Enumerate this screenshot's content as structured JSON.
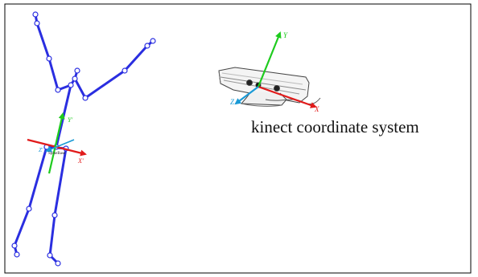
{
  "caption": "kinect coordinate system",
  "skeleton": {
    "axis_labels": {
      "x": "X'",
      "y": "Y'",
      "z": "Z'"
    },
    "origin_label": "SpineBase"
  },
  "sensor": {
    "axis_labels": {
      "x": "X",
      "y": "Y",
      "z": "Z"
    }
  },
  "colors": {
    "bone": "#2a2ee0",
    "joint_fill": "#ffffff",
    "x_axis": "#e11b1b",
    "y_axis": "#1ecb1e",
    "z_axis": "#1a9ad6",
    "frame": "#000000"
  }
}
